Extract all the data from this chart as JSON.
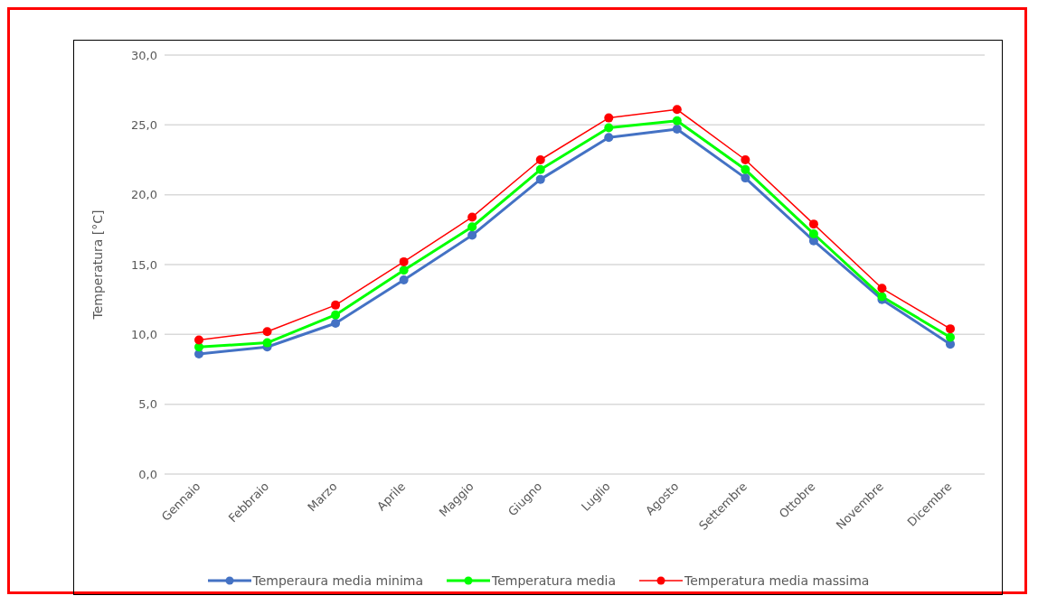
{
  "chart_data": {
    "type": "line",
    "ylabel": "Temperatura [°C]",
    "categories": [
      "Gennaio",
      "Febbraio",
      "Marzo",
      "Aprile",
      "Maggio",
      "Giugno",
      "Luglio",
      "Agosto",
      "Settembre",
      "Ottobre",
      "Novembre",
      "Dicembre"
    ],
    "series": [
      {
        "name": "Temperaura media minima",
        "color": "#4472c4",
        "values": [
          8.6,
          9.1,
          10.8,
          13.9,
          17.1,
          21.1,
          24.1,
          24.7,
          21.2,
          16.7,
          12.5,
          9.3
        ]
      },
      {
        "name": "Temperatura media",
        "color": "#00ff00",
        "values": [
          9.1,
          9.4,
          11.4,
          14.6,
          17.7,
          21.8,
          24.8,
          25.3,
          21.8,
          17.2,
          12.7,
          9.8
        ]
      },
      {
        "name": "Temperatura media massima",
        "color": "#ff0000",
        "values": [
          9.6,
          10.2,
          12.1,
          15.2,
          18.4,
          22.5,
          25.5,
          26.1,
          22.5,
          17.9,
          13.3,
          10.4
        ]
      }
    ],
    "ylim": [
      0,
      30
    ],
    "yticks": [
      {
        "value": 0,
        "label": "0,0"
      },
      {
        "value": 5,
        "label": "5,0"
      },
      {
        "value": 10,
        "label": "10,0"
      },
      {
        "value": 15,
        "label": "15,0"
      },
      {
        "value": 20,
        "label": "20,0"
      },
      {
        "value": 25,
        "label": "25,0"
      },
      {
        "value": 30,
        "label": "30,0"
      }
    ],
    "grid": "y",
    "legend": "bottom",
    "marker": "circle",
    "line_style": "solid"
  }
}
